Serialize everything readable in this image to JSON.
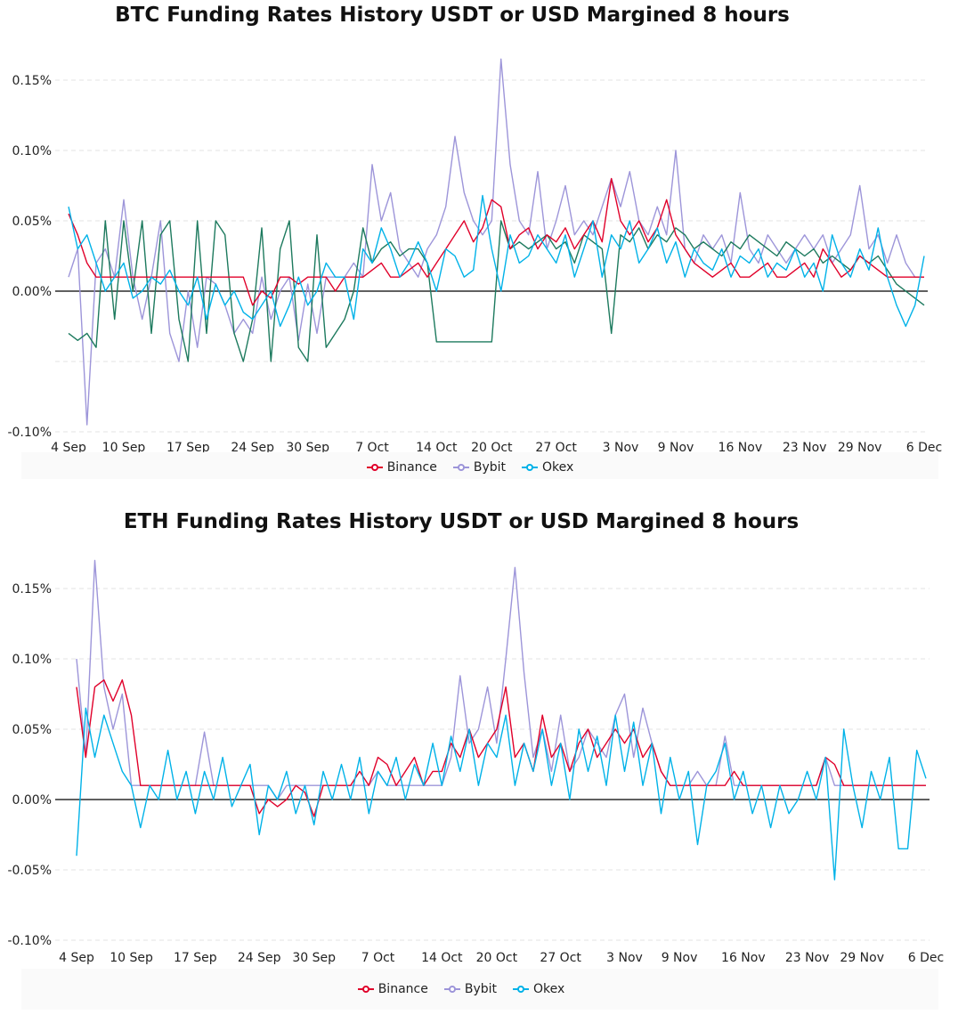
{
  "charts": [
    {
      "title": "BTC Funding Rates History USDT or USD Margined 8 hours",
      "type": "line",
      "y_ticks": [
        "0.15%",
        "0.10%",
        "0.05%",
        "0.00%",
        "-0.10%"
      ],
      "y_tick_values": [
        0.15,
        0.1,
        0.05,
        0.0,
        -0.1
      ],
      "y_grid_values": [
        0.15,
        0.1,
        0.05,
        0.0,
        -0.05,
        -0.1
      ],
      "ylim": [
        -0.1,
        0.17
      ],
      "x_ticks": [
        "4 Sep",
        "10 Sep",
        "17 Sep",
        "24 Sep",
        "30 Sep",
        "7 Oct",
        "14 Oct",
        "20 Oct",
        "27 Oct",
        "3 Nov",
        "9 Nov",
        "16 Nov",
        "23 Nov",
        "29 Nov",
        "6 Dec"
      ],
      "x_tick_index": [
        0,
        6,
        13,
        20,
        26,
        33,
        40,
        46,
        53,
        60,
        66,
        73,
        80,
        86,
        93
      ],
      "legend": [
        {
          "name": "Binance",
          "color": "#e0002a"
        },
        {
          "name": "Bybit",
          "color": "#9d95d9"
        },
        {
          "name": "Okex",
          "color": "#00b2e8"
        }
      ],
      "series": [
        {
          "name": "Bybit",
          "color": "#9d95d9",
          "values": [
            0.01,
            0.03,
            -0.095,
            0.02,
            0.03,
            0.01,
            0.065,
            0.01,
            -0.02,
            0.01,
            0.05,
            -0.03,
            -0.05,
            0.0,
            -0.04,
            0.01,
            0.005,
            -0.01,
            -0.03,
            -0.02,
            -0.03,
            0.01,
            -0.02,
            0.0,
            0.01,
            -0.035,
            0.005,
            -0.03,
            0.01,
            0.01,
            0.01,
            0.02,
            0.01,
            0.09,
            0.05,
            0.07,
            0.03,
            0.02,
            0.01,
            0.03,
            0.04,
            0.06,
            0.11,
            0.07,
            0.05,
            0.04,
            0.05,
            0.165,
            0.09,
            0.05,
            0.04,
            0.085,
            0.03,
            0.05,
            0.075,
            0.04,
            0.05,
            0.04,
            0.06,
            0.08,
            0.06,
            0.085,
            0.05,
            0.04,
            0.06,
            0.04,
            0.1,
            0.03,
            0.02,
            0.04,
            0.03,
            0.04,
            0.02,
            0.07,
            0.03,
            0.02,
            0.04,
            0.03,
            0.02,
            0.03,
            0.04,
            0.03,
            0.04,
            0.02,
            0.03,
            0.04,
            0.075,
            0.03,
            0.04,
            0.02,
            0.04,
            0.02,
            0.01,
            0.01
          ]
        },
        {
          "color": "#1d7a5e",
          "values": [
            -0.03,
            -0.035,
            -0.03,
            -0.04,
            0.05,
            -0.02,
            0.05,
            0.0,
            0.05,
            -0.03,
            0.04,
            0.05,
            -0.02,
            -0.05,
            0.05,
            -0.03,
            0.05,
            0.04,
            -0.03,
            -0.05,
            -0.02,
            0.045,
            -0.05,
            0.03,
            0.05,
            -0.04,
            -0.05,
            0.04,
            -0.04,
            -0.03,
            -0.02,
            0.0,
            0.045,
            0.02,
            0.03,
            0.035,
            0.025,
            0.03,
            0.03,
            0.02,
            -0.036,
            -0.036,
            -0.036,
            -0.036,
            -0.036,
            -0.036,
            -0.036,
            0.05,
            0.03,
            0.035,
            0.03,
            0.035,
            0.04,
            0.03,
            0.035,
            0.02,
            0.04,
            0.035,
            0.03,
            -0.03,
            0.04,
            0.035,
            0.045,
            0.03,
            0.04,
            0.035,
            0.045,
            0.04,
            0.03,
            0.035,
            0.03,
            0.025,
            0.035,
            0.03,
            0.04,
            0.035,
            0.03,
            0.025,
            0.035,
            0.03,
            0.025,
            0.03,
            0.02,
            0.025,
            0.02,
            0.015,
            0.025,
            0.02,
            0.025,
            0.015,
            0.005,
            0.0,
            -0.005,
            -0.01
          ]
        },
        {
          "name": "Binance",
          "color": "#e0002a",
          "values": [
            0.055,
            0.04,
            0.02,
            0.01,
            0.01,
            0.01,
            0.01,
            0.01,
            0.01,
            0.01,
            0.01,
            0.01,
            0.01,
            0.01,
            0.01,
            0.01,
            0.01,
            0.01,
            0.01,
            0.01,
            -0.01,
            0.0,
            -0.005,
            0.01,
            0.01,
            0.005,
            0.01,
            0.01,
            0.01,
            0.0,
            0.01,
            0.01,
            0.01,
            0.015,
            0.02,
            0.01,
            0.01,
            0.015,
            0.02,
            0.01,
            0.02,
            0.03,
            0.04,
            0.05,
            0.035,
            0.045,
            0.065,
            0.06,
            0.03,
            0.04,
            0.045,
            0.03,
            0.04,
            0.035,
            0.045,
            0.03,
            0.04,
            0.05,
            0.035,
            0.08,
            0.05,
            0.04,
            0.05,
            0.035,
            0.045,
            0.065,
            0.04,
            0.03,
            0.02,
            0.015,
            0.01,
            0.015,
            0.02,
            0.01,
            0.01,
            0.015,
            0.02,
            0.01,
            0.01,
            0.015,
            0.02,
            0.01,
            0.03,
            0.02,
            0.01,
            0.015,
            0.025,
            0.02,
            0.015,
            0.01,
            0.01,
            0.01,
            0.01,
            0.01
          ]
        },
        {
          "name": "Okex",
          "color": "#00b2e8",
          "values": [
            0.06,
            0.03,
            0.04,
            0.02,
            0.0,
            0.01,
            0.02,
            -0.005,
            0.0,
            0.01,
            0.005,
            0.015,
            0.0,
            -0.01,
            0.01,
            -0.02,
            0.005,
            -0.01,
            0.0,
            -0.015,
            -0.02,
            -0.01,
            0.0,
            -0.025,
            -0.01,
            0.01,
            -0.01,
            0.0,
            0.02,
            0.01,
            0.01,
            -0.02,
            0.03,
            0.02,
            0.045,
            0.03,
            0.01,
            0.02,
            0.035,
            0.02,
            0.0,
            0.03,
            0.025,
            0.01,
            0.015,
            0.068,
            0.03,
            0.0,
            0.04,
            0.02,
            0.025,
            0.04,
            0.03,
            0.02,
            0.04,
            0.01,
            0.03,
            0.05,
            0.01,
            0.04,
            0.03,
            0.05,
            0.02,
            0.03,
            0.045,
            0.02,
            0.035,
            0.01,
            0.03,
            0.02,
            0.015,
            0.03,
            0.01,
            0.025,
            0.02,
            0.03,
            0.01,
            0.02,
            0.015,
            0.03,
            0.01,
            0.02,
            0.0,
            0.04,
            0.02,
            0.01,
            0.03,
            0.015,
            0.045,
            0.01,
            -0.01,
            -0.025,
            -0.01,
            0.025
          ]
        }
      ]
    },
    {
      "title": "ETH Funding Rates History USDT or USD Margined 8 hours",
      "type": "line",
      "y_ticks": [
        "0.15%",
        "0.10%",
        "0.05%",
        "0.00%",
        "-0.05%",
        "-0.10%"
      ],
      "y_tick_values": [
        0.15,
        0.1,
        0.05,
        0.0,
        -0.05,
        -0.1
      ],
      "y_grid_values": [
        0.15,
        0.1,
        0.05,
        0.0,
        -0.05,
        -0.1
      ],
      "ylim": [
        -0.1,
        0.17
      ],
      "x_ticks": [
        "4 Sep",
        "10 Sep",
        "17 Sep",
        "24 Sep",
        "30 Sep",
        "7 Oct",
        "14 Oct",
        "20 Oct",
        "27 Oct",
        "3 Nov",
        "9 Nov",
        "16 Nov",
        "23 Nov",
        "29 Nov",
        "6 Dec"
      ],
      "x_tick_index": [
        0,
        6,
        13,
        20,
        26,
        33,
        40,
        46,
        53,
        60,
        66,
        73,
        80,
        86,
        93
      ],
      "legend": [
        {
          "name": "Binance",
          "color": "#e0002a"
        },
        {
          "name": "Bybit",
          "color": "#9d95d9"
        },
        {
          "name": "Okex",
          "color": "#00b2e8"
        }
      ],
      "series": [
        {
          "name": "Bybit",
          "color": "#9d95d9",
          "values": [
            0.1,
            0.03,
            0.17,
            0.08,
            0.05,
            0.075,
            0.01,
            0.01,
            0.01,
            0.01,
            0.01,
            0.01,
            0.01,
            0.01,
            0.048,
            0.01,
            0.01,
            0.01,
            0.01,
            0.01,
            0.01,
            0.01,
            0.0,
            0.01,
            0.01,
            0.01,
            0.01,
            0.01,
            0.01,
            0.01,
            0.01,
            0.01,
            0.01,
            0.02,
            0.01,
            0.01,
            0.01,
            0.01,
            0.01,
            0.01,
            0.01,
            0.03,
            0.088,
            0.04,
            0.05,
            0.08,
            0.04,
            0.1,
            0.165,
            0.09,
            0.03,
            0.05,
            0.02,
            0.06,
            0.02,
            0.03,
            0.05,
            0.04,
            0.03,
            0.06,
            0.075,
            0.03,
            0.065,
            0.04,
            0.02,
            0.01,
            0.01,
            0.01,
            0.02,
            0.01,
            0.01,
            0.045,
            0.01,
            0.01,
            0.01,
            0.01,
            0.01,
            0.01,
            0.01,
            0.01,
            0.01,
            0.01,
            0.03,
            0.01,
            0.01,
            0.01,
            0.01,
            0.01,
            0.01,
            0.01,
            0.01,
            0.01,
            0.01,
            0.01
          ]
        },
        {
          "name": "Binance",
          "color": "#e0002a",
          "values": [
            0.08,
            0.03,
            0.08,
            0.085,
            0.07,
            0.085,
            0.06,
            0.01,
            0.01,
            0.01,
            0.01,
            0.01,
            0.01,
            0.01,
            0.01,
            0.01,
            0.01,
            0.01,
            0.01,
            0.01,
            -0.01,
            0.0,
            -0.005,
            0.0,
            0.01,
            0.005,
            -0.012,
            0.01,
            0.01,
            0.01,
            0.01,
            0.02,
            0.01,
            0.03,
            0.025,
            0.01,
            0.02,
            0.03,
            0.01,
            0.02,
            0.02,
            0.04,
            0.03,
            0.05,
            0.03,
            0.04,
            0.05,
            0.08,
            0.03,
            0.04,
            0.02,
            0.06,
            0.03,
            0.04,
            0.02,
            0.04,
            0.05,
            0.03,
            0.04,
            0.05,
            0.04,
            0.05,
            0.03,
            0.04,
            0.02,
            0.01,
            0.01,
            0.01,
            0.01,
            0.01,
            0.01,
            0.01,
            0.02,
            0.01,
            0.01,
            0.01,
            0.01,
            0.01,
            0.01,
            0.01,
            0.01,
            0.01,
            0.03,
            0.025,
            0.01,
            0.01,
            0.01,
            0.01,
            0.01,
            0.01,
            0.01,
            0.01,
            0.01,
            0.01
          ]
        },
        {
          "name": "Okex",
          "color": "#00b2e8",
          "values": [
            -0.04,
            0.065,
            0.03,
            0.06,
            0.04,
            0.02,
            0.01,
            -0.02,
            0.01,
            0.0,
            0.035,
            0.0,
            0.02,
            -0.01,
            0.02,
            0.0,
            0.03,
            -0.005,
            0.01,
            0.025,
            -0.025,
            0.01,
            0.0,
            0.02,
            -0.01,
            0.01,
            -0.018,
            0.02,
            0.0,
            0.025,
            0.0,
            0.03,
            -0.01,
            0.02,
            0.01,
            0.03,
            0.0,
            0.025,
            0.01,
            0.04,
            0.01,
            0.045,
            0.02,
            0.05,
            0.01,
            0.04,
            0.03,
            0.06,
            0.01,
            0.04,
            0.02,
            0.05,
            0.01,
            0.04,
            0.0,
            0.05,
            0.02,
            0.045,
            0.01,
            0.06,
            0.02,
            0.055,
            0.01,
            0.04,
            -0.01,
            0.03,
            0.0,
            0.02,
            -0.032,
            0.01,
            0.02,
            0.04,
            0.0,
            0.02,
            -0.01,
            0.01,
            -0.02,
            0.01,
            -0.01,
            0.0,
            0.02,
            0.0,
            0.03,
            -0.057,
            0.05,
            0.01,
            -0.02,
            0.02,
            0.0,
            0.03,
            -0.035,
            -0.035,
            0.035,
            0.015
          ]
        }
      ]
    }
  ]
}
